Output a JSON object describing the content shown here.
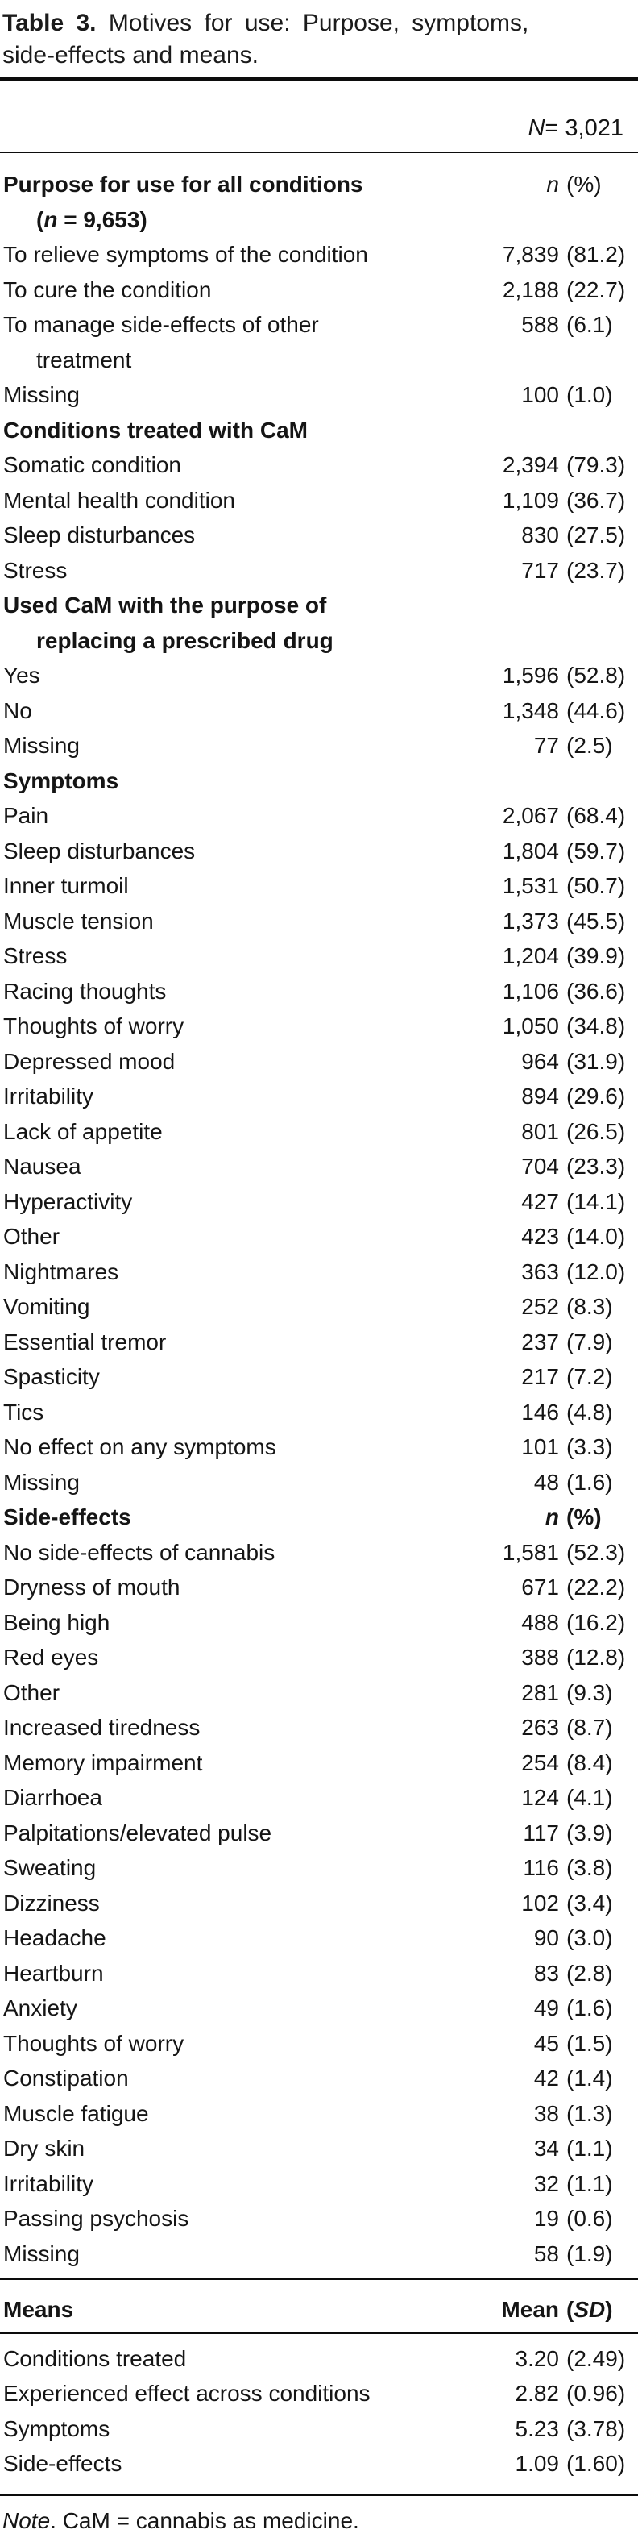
{
  "caption": {
    "line1_runs": [
      {
        "t": "Table 3.",
        "b": true
      },
      {
        "t": " Motives for use: Purpose, symptoms,"
      }
    ],
    "line2_runs": [
      {
        "t": "side-effects and means."
      }
    ]
  },
  "column_header": {
    "n_total_runs": [
      {
        "t": "N",
        "i": true
      },
      {
        "t": " = 3,021"
      }
    ]
  },
  "sections": [
    {
      "title_lines": [
        [
          {
            "t": "Purpose for use for all conditions"
          }
        ],
        [
          {
            "t": "("
          },
          {
            "t": "n",
            "i": true
          },
          {
            "t": " = 9,653)"
          }
        ]
      ],
      "value_n_runs": [
        {
          "t": "n",
          "i": true
        }
      ],
      "value_p_runs": [
        {
          "t": "(%)"
        }
      ],
      "value_bold": false,
      "rows": [
        {
          "label": "To relieve symptoms of the condition",
          "n": "7,839",
          "p": "(81.2)"
        },
        {
          "label": "To cure the condition",
          "n": "2,188",
          "p": "(22.7)"
        },
        {
          "label": "To manage side-effects of other\ntreatment",
          "n": "588",
          "p": "(6.1)"
        },
        {
          "label": "Missing",
          "n": "100",
          "p": "(1.0)"
        }
      ]
    },
    {
      "title_lines": [
        [
          {
            "t": "Conditions treated with CaM"
          }
        ]
      ],
      "rows": [
        {
          "label": "Somatic condition",
          "n": "2,394",
          "p": "(79.3)"
        },
        {
          "label": "Mental health condition",
          "n": "1,109",
          "p": "(36.7)"
        },
        {
          "label": "Sleep disturbances",
          "n": "830",
          "p": "(27.5)"
        },
        {
          "label": "Stress",
          "n": "717",
          "p": "(23.7)"
        }
      ]
    },
    {
      "title_lines": [
        [
          {
            "t": "Used CaM with the purpose of"
          }
        ],
        [
          {
            "t": "replacing a prescribed drug"
          }
        ]
      ],
      "rows": [
        {
          "label": "Yes",
          "n": "1,596",
          "p": "(52.8)"
        },
        {
          "label": "No",
          "n": "1,348",
          "p": "(44.6)"
        },
        {
          "label": "Missing",
          "n": "77",
          "p": "(2.5)"
        }
      ]
    },
    {
      "title_lines": [
        [
          {
            "t": "Symptoms"
          }
        ]
      ],
      "rows": [
        {
          "label": "Pain",
          "n": "2,067",
          "p": "(68.4)"
        },
        {
          "label": "Sleep disturbances",
          "n": "1,804",
          "p": "(59.7)"
        },
        {
          "label": "Inner turmoil",
          "n": "1,531",
          "p": "(50.7)"
        },
        {
          "label": "Muscle tension",
          "n": "1,373",
          "p": "(45.5)"
        },
        {
          "label": "Stress",
          "n": "1,204",
          "p": "(39.9)"
        },
        {
          "label": "Racing thoughts",
          "n": "1,106",
          "p": "(36.6)"
        },
        {
          "label": "Thoughts of worry",
          "n": "1,050",
          "p": "(34.8)"
        },
        {
          "label": "Depressed mood",
          "n": "964",
          "p": "(31.9)"
        },
        {
          "label": "Irritability",
          "n": "894",
          "p": "(29.6)"
        },
        {
          "label": "Lack of appetite",
          "n": "801",
          "p": "(26.5)"
        },
        {
          "label": "Nausea",
          "n": "704",
          "p": "(23.3)"
        },
        {
          "label": "Hyperactivity",
          "n": "427",
          "p": "(14.1)"
        },
        {
          "label": "Other",
          "n": "423",
          "p": "(14.0)"
        },
        {
          "label": "Nightmares",
          "n": "363",
          "p": "(12.0)"
        },
        {
          "label": "Vomiting",
          "n": "252",
          "p": "(8.3)"
        },
        {
          "label": "Essential tremor",
          "n": "237",
          "p": "(7.9)"
        },
        {
          "label": "Spasticity",
          "n": "217",
          "p": "(7.2)"
        },
        {
          "label": "Tics",
          "n": "146",
          "p": "(4.8)"
        },
        {
          "label": "No effect on any symptoms",
          "n": "101",
          "p": "(3.3)"
        },
        {
          "label": "Missing",
          "n": "48",
          "p": "(1.6)"
        }
      ]
    },
    {
      "title_lines": [
        [
          {
            "t": "Side-effects"
          }
        ]
      ],
      "value_n_runs": [
        {
          "t": "n",
          "i": true
        }
      ],
      "value_p_runs": [
        {
          "t": "(%)"
        }
      ],
      "value_bold": true,
      "rows": [
        {
          "label": "No side-effects of cannabis",
          "n": "1,581",
          "p": "(52.3)"
        },
        {
          "label": "Dryness of mouth",
          "n": "671",
          "p": "(22.2)"
        },
        {
          "label": "Being high",
          "n": "488",
          "p": "(16.2)"
        },
        {
          "label": "Red eyes",
          "n": "388",
          "p": "(12.8)"
        },
        {
          "label": "Other",
          "n": "281",
          "p": "(9.3)"
        },
        {
          "label": "Increased tiredness",
          "n": "263",
          "p": "(8.7)"
        },
        {
          "label": "Memory impairment",
          "n": "254",
          "p": "(8.4)"
        },
        {
          "label": "Diarrhoea",
          "n": "124",
          "p": "(4.1)"
        },
        {
          "label": "Palpitations/elevated pulse",
          "n": "117",
          "p": "(3.9)"
        },
        {
          "label": "Sweating",
          "n": "116",
          "p": "(3.8)"
        },
        {
          "label": "Dizziness",
          "n": "102",
          "p": "(3.4)"
        },
        {
          "label": "Headache",
          "n": "90",
          "p": "(3.0)"
        },
        {
          "label": "Heartburn",
          "n": "83",
          "p": "(2.8)"
        },
        {
          "label": "Anxiety",
          "n": "49",
          "p": "(1.6)"
        },
        {
          "label": "Thoughts of worry",
          "n": "45",
          "p": "(1.5)"
        },
        {
          "label": "Constipation",
          "n": "42",
          "p": "(1.4)"
        },
        {
          "label": "Muscle fatigue",
          "n": "38",
          "p": "(1.3)"
        },
        {
          "label": "Dry skin",
          "n": "34",
          "p": "(1.1)"
        },
        {
          "label": "Irritability",
          "n": "32",
          "p": "(1.1)"
        },
        {
          "label": "Passing psychosis",
          "n": "19",
          "p": "(0.6)"
        },
        {
          "label": "Missing",
          "n": "58",
          "p": "(1.9)"
        }
      ]
    }
  ],
  "means": {
    "title_runs": [
      {
        "t": "Means"
      }
    ],
    "value_n_runs": [
      {
        "t": "Mean"
      }
    ],
    "value_p_runs": [
      {
        "t": "("
      },
      {
        "t": "SD",
        "i": true
      },
      {
        "t": ")"
      }
    ],
    "rows": [
      {
        "label": "Conditions treated",
        "n": "3.20",
        "p": "(2.49)"
      },
      {
        "label": "Experienced effect across conditions",
        "n": "2.82",
        "p": "(0.96)"
      },
      {
        "label": "Symptoms",
        "n": "5.23",
        "p": "(3.78)"
      },
      {
        "label": "Side-effects",
        "n": "1.09",
        "p": "(1.60)"
      }
    ]
  },
  "note_runs": [
    {
      "t": "Note",
      "i": true
    },
    {
      "t": ". CaM = cannabis as medicine."
    }
  ],
  "colors": {
    "text": "#151515",
    "rule": "#0c0c0c",
    "background": "#ffffff"
  }
}
